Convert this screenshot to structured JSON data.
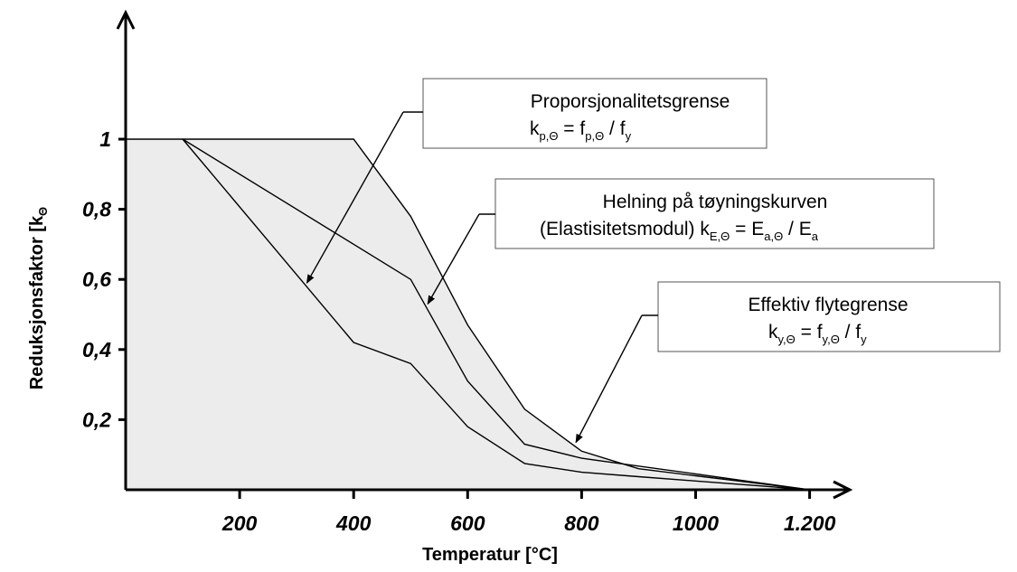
{
  "chart_data": {
    "type": "line",
    "xlabel": "Temperatur [°C]",
    "ylabel_main": "Reduksjonsfaktor [k",
    "ylabel_sub": "Θ",
    "xlim": [
      0,
      1250
    ],
    "ylim": [
      0,
      1.3
    ],
    "x_tick_labels": [
      {
        "value": 200,
        "label": "200"
      },
      {
        "value": 400,
        "label": "400"
      },
      {
        "value": 600,
        "label": "600"
      },
      {
        "value": 800,
        "label": "800"
      },
      {
        "value": 1000,
        "label": "1000"
      },
      {
        "value": 1200,
        "label": "1.200"
      }
    ],
    "y_tick_labels": [
      {
        "value": 0.2,
        "label": "0,2"
      },
      {
        "value": 0.4,
        "label": "0,4"
      },
      {
        "value": 0.6,
        "label": "0,6"
      },
      {
        "value": 0.8,
        "label": "0,8"
      },
      {
        "value": 1.0,
        "label": "1"
      }
    ],
    "fill_color": "#ececec",
    "line_color": "#000000",
    "series": [
      {
        "key": "ky",
        "x": [
          0,
          400,
          500,
          600,
          700,
          800,
          900,
          1000,
          1100,
          1200
        ],
        "y": [
          1.0,
          1.0,
          0.78,
          0.47,
          0.23,
          0.11,
          0.06,
          0.04,
          0.02,
          0.0
        ]
      },
      {
        "key": "kE",
        "x": [
          100,
          500,
          600,
          700,
          800,
          900,
          1000,
          1100,
          1200
        ],
        "y": [
          1.0,
          0.6,
          0.31,
          0.13,
          0.09,
          0.0675,
          0.045,
          0.0225,
          0.0
        ]
      },
      {
        "key": "kp",
        "x": [
          100,
          400,
          500,
          600,
          700,
          800,
          900,
          1000,
          1100,
          1200
        ],
        "y": [
          1.0,
          0.42,
          0.36,
          0.18,
          0.075,
          0.05,
          0.0375,
          0.025,
          0.0125,
          0.0
        ]
      }
    ],
    "annotations": [
      {
        "key": "kp",
        "line1": "Proporsjonalitetsgrense",
        "line2": [
          {
            "t": "k"
          },
          {
            "t": "p,Θ",
            "sub": true
          },
          {
            "t": " = f"
          },
          {
            "t": "p,Θ",
            "sub": true
          },
          {
            "t": " /  f"
          },
          {
            "t": "y",
            "sub": true
          }
        ],
        "arrow_target": {
          "x": 318,
          "y": 0.59
        }
      },
      {
        "key": "kE",
        "line1": "Helning på tøyningskurven",
        "line2": [
          {
            "t": "(Elastisitetsmodul) k"
          },
          {
            "t": "E,Θ",
            "sub": true
          },
          {
            "t": " = E"
          },
          {
            "t": "a,Θ",
            "sub": true
          },
          {
            "t": " /  E"
          },
          {
            "t": "a",
            "sub": true
          }
        ],
        "arrow_target": {
          "x": 530,
          "y": 0.53
        }
      },
      {
        "key": "ky",
        "line1": "Effektiv flytegrense",
        "line2": [
          {
            "t": "k"
          },
          {
            "t": "y,Θ",
            "sub": true
          },
          {
            "t": " = f"
          },
          {
            "t": "y,Θ",
            "sub": true
          },
          {
            "t": " /  f"
          },
          {
            "t": "y",
            "sub": true
          }
        ],
        "arrow_target": {
          "x": 790,
          "y": 0.135
        }
      }
    ]
  }
}
